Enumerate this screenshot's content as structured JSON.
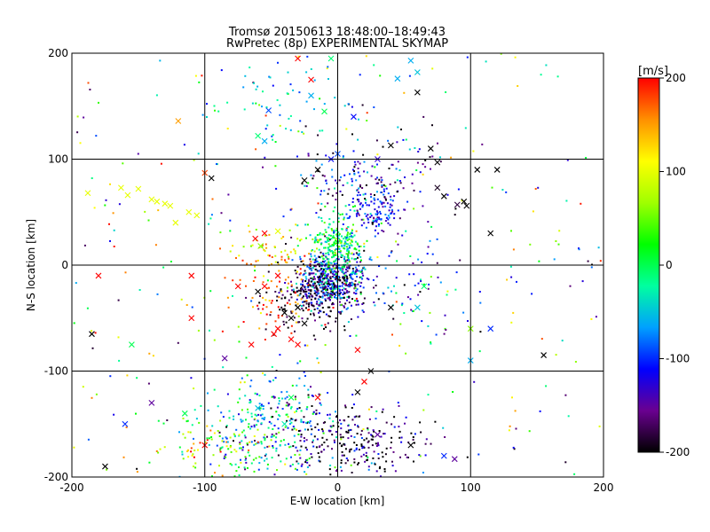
{
  "chart_data": {
    "type": "scatter",
    "title": "Tromsø 20150613 18:48:00–18:49:43",
    "subtitle": "RwPretec (8p) EXPERIMENTAL SKYMAP",
    "xlabel": "E-W location [km]",
    "ylabel": "N-S location [km]",
    "xlim": [
      -200,
      200
    ],
    "ylim": [
      -200,
      200
    ],
    "xticks": [
      -200,
      -100,
      0,
      100,
      200
    ],
    "yticks": [
      -200,
      -100,
      0,
      100,
      200
    ],
    "grid": true,
    "colorbar": {
      "label": "[m/s]",
      "range": [
        -200,
        200
      ],
      "ticks": [
        200,
        100,
        0,
        -100,
        -200
      ],
      "colormap": [
        "#000000",
        "#6a0090",
        "#0000ff",
        "#00a0ff",
        "#00ffa0",
        "#00ff00",
        "#a0ff00",
        "#ffff00",
        "#ff9000",
        "#ff0000"
      ]
    },
    "clusters": [
      {
        "cx": -5,
        "cy": -15,
        "sx": 12,
        "sy": 14,
        "n": 520,
        "vmean": -120,
        "vsd": 60
      },
      {
        "cx": 0,
        "cy": 20,
        "sx": 10,
        "sy": 15,
        "n": 260,
        "vmean": -10,
        "vsd": 40
      },
      {
        "cx": -20,
        "cy": -30,
        "sx": 15,
        "sy": 15,
        "n": 170,
        "vmean": -190,
        "vsd": 25
      },
      {
        "cx": 30,
        "cy": 50,
        "sx": 10,
        "sy": 10,
        "n": 110,
        "vmean": -120,
        "vsd": 30
      },
      {
        "cx": 20,
        "cy": 80,
        "sx": 25,
        "sy": 20,
        "n": 160,
        "vmean": -130,
        "vsd": 60
      },
      {
        "cx": -50,
        "cy": -150,
        "sx": 25,
        "sy": 25,
        "n": 280,
        "vmean": -60,
        "vsd": 70
      },
      {
        "cx": 15,
        "cy": -170,
        "sx": 25,
        "sy": 20,
        "n": 260,
        "vmean": -180,
        "vsd": 50
      },
      {
        "cx": -90,
        "cy": -170,
        "sx": 20,
        "sy": 20,
        "n": 110,
        "vmean": 60,
        "vsd": 80
      },
      {
        "cx": -45,
        "cy": 15,
        "sx": 20,
        "sy": 10,
        "n": 60,
        "vmean": 120,
        "vsd": 40
      },
      {
        "cx": -40,
        "cy": -30,
        "sx": 20,
        "sy": 20,
        "n": 80,
        "vmean": 170,
        "vsd": 40
      },
      {
        "cx": -30,
        "cy": 160,
        "sx": 30,
        "sy": 20,
        "n": 60,
        "vmean": -40,
        "vsd": 50
      },
      {
        "cx": 40,
        "cy": -20,
        "sx": 30,
        "sy": 25,
        "n": 100,
        "vmean": -100,
        "vsd": 80
      }
    ],
    "scatter_background": {
      "n": 300,
      "vmin": -200,
      "vmax": 200
    },
    "crosses": [
      {
        "x": -188,
        "y": 68,
        "v": 100
      },
      {
        "x": -163,
        "y": 73,
        "v": 100
      },
      {
        "x": -158,
        "y": 66,
        "v": 100
      },
      {
        "x": -150,
        "y": 72,
        "v": 100
      },
      {
        "x": -140,
        "y": 62,
        "v": 100
      },
      {
        "x": -136,
        "y": 60,
        "v": 100
      },
      {
        "x": -130,
        "y": 58,
        "v": 100
      },
      {
        "x": -126,
        "y": 56,
        "v": 100
      },
      {
        "x": -122,
        "y": 40,
        "v": 100
      },
      {
        "x": -112,
        "y": 50,
        "v": 100
      },
      {
        "x": -106,
        "y": 47,
        "v": 100
      },
      {
        "x": -120,
        "y": 136,
        "v": 150
      },
      {
        "x": -100,
        "y": 87,
        "v": 180
      },
      {
        "x": -95,
        "y": 82,
        "v": -200
      },
      {
        "x": -60,
        "y": 122,
        "v": -10
      },
      {
        "x": -52,
        "y": 146,
        "v": -90
      },
      {
        "x": -55,
        "y": 117,
        "v": -60
      },
      {
        "x": -30,
        "y": 195,
        "v": 200
      },
      {
        "x": -20,
        "y": 175,
        "v": 200
      },
      {
        "x": -10,
        "y": 145,
        "v": 0
      },
      {
        "x": -20,
        "y": 160,
        "v": -60
      },
      {
        "x": 12,
        "y": 140,
        "v": -110
      },
      {
        "x": 45,
        "y": 176,
        "v": -60
      },
      {
        "x": 55,
        "y": 193,
        "v": -60
      },
      {
        "x": 60,
        "y": 182,
        "v": -50
      },
      {
        "x": 60,
        "y": 163,
        "v": -200
      },
      {
        "x": 70,
        "y": 110,
        "v": -200
      },
      {
        "x": 75,
        "y": 97,
        "v": -200
      },
      {
        "x": 80,
        "y": 65,
        "v": -200
      },
      {
        "x": 95,
        "y": 60,
        "v": -200
      },
      {
        "x": 97,
        "y": 56,
        "v": -200
      },
      {
        "x": 90,
        "y": 57,
        "v": -180
      },
      {
        "x": 75,
        "y": 73,
        "v": -190
      },
      {
        "x": 105,
        "y": 90,
        "v": -200
      },
      {
        "x": 120,
        "y": 90,
        "v": -200
      },
      {
        "x": 115,
        "y": 30,
        "v": -200
      },
      {
        "x": 40,
        "y": 113,
        "v": -200
      },
      {
        "x": 30,
        "y": 100,
        "v": -130
      },
      {
        "x": -5,
        "y": 100,
        "v": -110
      },
      {
        "x": -15,
        "y": 90,
        "v": -200
      },
      {
        "x": -25,
        "y": 80,
        "v": -200
      },
      {
        "x": 0,
        "y": 105,
        "v": -90
      },
      {
        "x": -55,
        "y": 30,
        "v": 200
      },
      {
        "x": -62,
        "y": 25,
        "v": 200
      },
      {
        "x": -45,
        "y": 32,
        "v": 100
      },
      {
        "x": -58,
        "y": 18,
        "v": 60
      },
      {
        "x": -45,
        "y": -10,
        "v": 200
      },
      {
        "x": -55,
        "y": -20,
        "v": 200
      },
      {
        "x": -60,
        "y": -25,
        "v": -200
      },
      {
        "x": -75,
        "y": -20,
        "v": 200
      },
      {
        "x": -110,
        "y": -10,
        "v": 200
      },
      {
        "x": -110,
        "y": -50,
        "v": 200
      },
      {
        "x": -180,
        "y": -10,
        "v": 200
      },
      {
        "x": -185,
        "y": -65,
        "v": -200
      },
      {
        "x": -155,
        "y": -75,
        "v": 0
      },
      {
        "x": -48,
        "y": -65,
        "v": 200
      },
      {
        "x": -45,
        "y": -60,
        "v": 200
      },
      {
        "x": -35,
        "y": -70,
        "v": 200
      },
      {
        "x": -30,
        "y": -75,
        "v": 200
      },
      {
        "x": -65,
        "y": -75,
        "v": 200
      },
      {
        "x": -40,
        "y": -45,
        "v": -200
      },
      {
        "x": -35,
        "y": -50,
        "v": -200
      },
      {
        "x": -30,
        "y": -40,
        "v": -200
      },
      {
        "x": -25,
        "y": -55,
        "v": -200
      },
      {
        "x": 15,
        "y": -80,
        "v": 200
      },
      {
        "x": 20,
        "y": -110,
        "v": 200
      },
      {
        "x": 15,
        "y": -120,
        "v": -200
      },
      {
        "x": 25,
        "y": -100,
        "v": -200
      },
      {
        "x": 65,
        "y": -20,
        "v": -10
      },
      {
        "x": 60,
        "y": -40,
        "v": -50
      },
      {
        "x": 40,
        "y": -40,
        "v": -200
      },
      {
        "x": 100,
        "y": -60,
        "v": 60
      },
      {
        "x": 115,
        "y": -60,
        "v": -100
      },
      {
        "x": 155,
        "y": -85,
        "v": -200
      },
      {
        "x": 100,
        "y": -90,
        "v": -60
      },
      {
        "x": -140,
        "y": -130,
        "v": -150
      },
      {
        "x": -160,
        "y": -150,
        "v": -100
      },
      {
        "x": -115,
        "y": -140,
        "v": 0
      },
      {
        "x": -100,
        "y": -170,
        "v": 200
      },
      {
        "x": -85,
        "y": -88,
        "v": -150
      },
      {
        "x": -60,
        "y": -135,
        "v": -50
      },
      {
        "x": -40,
        "y": -150,
        "v": -30
      },
      {
        "x": -35,
        "y": -125,
        "v": 0
      },
      {
        "x": -175,
        "y": -190,
        "v": -200
      },
      {
        "x": 55,
        "y": -170,
        "v": -200
      },
      {
        "x": 80,
        "y": -180,
        "v": -100
      },
      {
        "x": 88,
        "y": -183,
        "v": -150
      },
      {
        "x": 30,
        "y": -160,
        "v": -150
      },
      {
        "x": -15,
        "y": -125,
        "v": 200
      },
      {
        "x": -5,
        "y": 195,
        "v": -10
      }
    ]
  }
}
